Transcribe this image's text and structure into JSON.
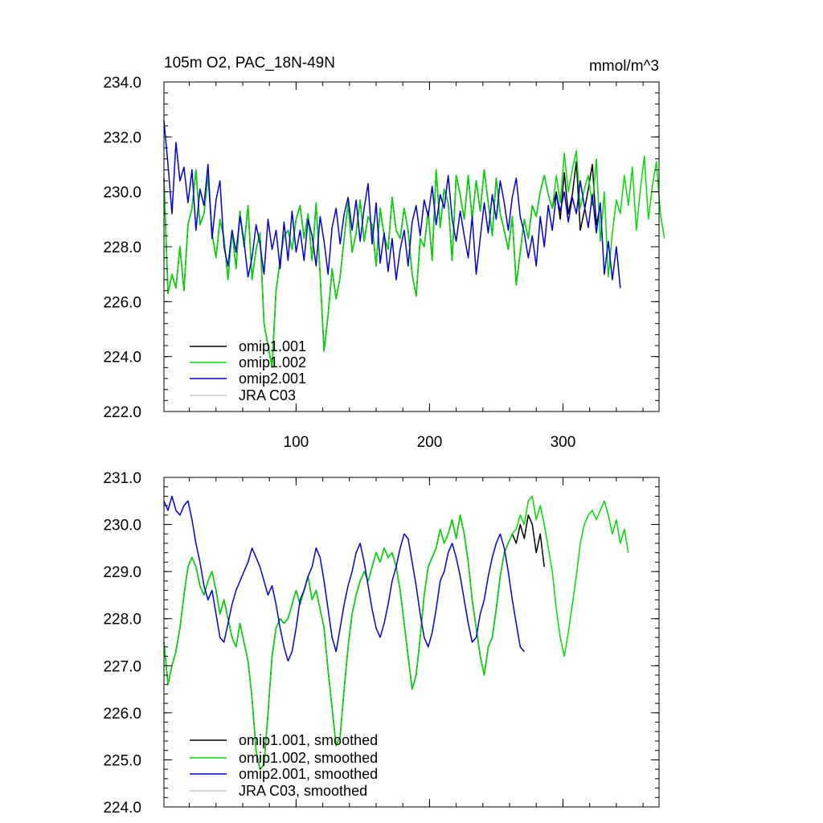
{
  "chart_data": [
    {
      "type": "line",
      "title_left": "105m O2, PAC_18N-49N",
      "title_right": "mmol/m^3",
      "xlim": [
        1,
        372
      ],
      "ylim": [
        222.0,
        234.0
      ],
      "y_ticks": [
        222.0,
        224.0,
        226.0,
        228.0,
        230.0,
        232.0,
        234.0
      ],
      "y_tick_labels": [
        "222.0",
        "224.0",
        "226.0",
        "228.0",
        "230.0",
        "232.0",
        "234.0"
      ],
      "x_ticks": [
        100,
        200,
        300
      ],
      "x_tick_labels": [
        "100",
        "200",
        "300"
      ],
      "legend_position": "bottom-left",
      "grid": false,
      "series": [
        {
          "name": "omip1.001",
          "color": "#000000",
          "x_start": 1,
          "x_step": 3,
          "values": [
            230.5,
            226.3,
            227.0,
            226.5,
            228.0,
            226.4,
            228.8,
            229.4,
            230.8,
            228.8,
            229.2,
            230.6,
            228.5,
            227.6,
            229.0,
            228.3,
            226.8,
            228.6,
            227.2,
            229.3,
            228.0,
            229.5,
            226.8,
            227.9,
            228.5,
            225.2,
            224.4,
            223.6,
            226.4,
            227.5,
            228.4,
            228.6,
            227.9,
            229.0,
            229.5,
            228.3,
            229.2,
            227.5,
            229.6,
            227.0,
            224.2,
            225.5,
            227.2,
            226.1,
            226.9,
            228.3,
            229.6,
            227.8,
            228.5,
            229.7,
            228.2,
            229.1,
            228.8,
            227.3,
            229.4,
            228.4,
            227.9,
            229.8,
            228.6,
            228.3,
            229.4,
            228.6,
            227.0,
            226.2,
            228.3,
            228.0,
            229.3,
            227.5,
            230.8,
            228.7,
            230.1,
            229.6,
            227.5,
            230.6,
            229.9,
            229.0,
            230.6,
            229.0,
            230.4,
            229.3,
            230.8,
            229.6,
            228.4,
            230.5,
            229.2,
            228.6,
            227.9,
            229.1,
            226.6,
            227.8,
            229.0,
            228.3,
            229.5,
            229.1,
            230.0,
            230.6,
            229.9,
            229.4,
            230.0,
            229.0,
            230.7,
            229.2,
            229.9,
            231.1,
            228.6,
            229.3,
            230.1,
            231.0,
            228.8,
            229.5
          ]
        },
        {
          "name": "omip1.002",
          "color": "#00dd00",
          "x_start": 1,
          "x_step": 3,
          "values": [
            230.5,
            226.3,
            227.0,
            226.5,
            228.0,
            226.4,
            228.8,
            229.4,
            230.8,
            228.8,
            229.2,
            230.6,
            228.5,
            227.6,
            229.0,
            228.3,
            226.8,
            228.6,
            227.2,
            229.3,
            228.0,
            229.5,
            226.8,
            227.9,
            228.5,
            225.2,
            224.4,
            223.6,
            226.4,
            227.5,
            228.4,
            228.6,
            227.9,
            229.0,
            229.5,
            228.3,
            229.2,
            227.5,
            229.6,
            227.0,
            224.2,
            225.5,
            227.2,
            226.1,
            226.9,
            228.3,
            229.6,
            227.8,
            228.5,
            229.7,
            228.2,
            229.1,
            228.8,
            227.3,
            229.4,
            228.4,
            227.9,
            229.8,
            228.6,
            228.3,
            229.4,
            228.6,
            227.0,
            226.2,
            228.3,
            228.0,
            229.3,
            227.5,
            230.8,
            228.7,
            230.1,
            229.6,
            227.5,
            230.6,
            229.9,
            229.0,
            230.6,
            229.0,
            230.4,
            229.3,
            230.8,
            229.6,
            228.4,
            230.5,
            229.2,
            228.6,
            227.9,
            229.1,
            226.6,
            227.8,
            229.0,
            228.3,
            229.5,
            229.1,
            230.0,
            230.6,
            229.9,
            229.4,
            230.6,
            229.6,
            231.4,
            230.0,
            230.8,
            231.5,
            229.4,
            230.1,
            230.6,
            229.5,
            231.2,
            228.2,
            230.0,
            226.9,
            228.5,
            229.7,
            229.2,
            230.6,
            229.5,
            230.9,
            228.6,
            230.1,
            231.3,
            229.0,
            230.2,
            231.1,
            229.2,
            228.3
          ]
        },
        {
          "name": "omip2.001",
          "color": "#0000dd",
          "x_start": 1,
          "x_step": 3,
          "values": [
            232.6,
            231.0,
            229.2,
            231.8,
            230.4,
            230.9,
            229.6,
            230.8,
            228.6,
            230.1,
            229.5,
            231.0,
            228.3,
            229.7,
            230.4,
            228.0,
            227.3,
            228.6,
            227.8,
            229.1,
            228.2,
            226.9,
            227.6,
            228.8,
            228.1,
            227.0,
            229.0,
            227.9,
            228.6,
            227.2,
            228.9,
            227.5,
            229.3,
            227.8,
            228.6,
            227.5,
            229.0,
            228.4,
            227.3,
            229.1,
            228.2,
            227.0,
            228.7,
            229.4,
            228.1,
            229.2,
            229.8,
            228.6,
            229.7,
            228.2,
            229.4,
            230.3,
            228.1,
            229.6,
            227.4,
            228.5,
            227.1,
            228.3,
            226.8,
            227.9,
            228.6,
            227.3,
            228.9,
            229.5,
            228.4,
            229.7,
            229.1,
            230.2,
            228.8,
            229.9,
            229.4,
            230.6,
            229.0,
            228.2,
            229.3,
            228.4,
            227.6,
            229.1,
            227.0,
            228.3,
            229.6,
            228.5,
            229.9,
            229.0,
            230.4,
            229.6,
            228.6,
            229.8,
            230.5,
            229.1,
            228.5,
            227.6,
            228.4,
            227.3,
            229.1,
            228.0,
            229.5,
            228.6,
            229.9,
            229.3,
            230.0,
            228.9,
            229.8,
            229.2,
            230.4,
            229.5,
            228.7,
            229.9,
            228.5,
            229.6,
            227.0,
            228.2,
            226.8,
            228.0,
            226.5
          ]
        },
        {
          "name": "JRA C03",
          "color": "#c8c8c8",
          "x_start": 1,
          "x_step": 3,
          "values": []
        }
      ]
    },
    {
      "type": "line",
      "xlim": [
        1,
        372
      ],
      "ylim": [
        224.0,
        231.0
      ],
      "y_ticks": [
        224.0,
        225.0,
        226.0,
        227.0,
        228.0,
        229.0,
        230.0,
        231.0
      ],
      "y_tick_labels": [
        "224.0",
        "225.0",
        "226.0",
        "227.0",
        "228.0",
        "229.0",
        "230.0",
        "231.0"
      ],
      "x_ticks": [
        100,
        200,
        300
      ],
      "legend_position": "bottom-left",
      "grid": false,
      "series": [
        {
          "name": "omip1.001, smoothed",
          "color": "#000000",
          "x_start": 1,
          "x_step": 3,
          "values": [
            227.5,
            226.6,
            227.0,
            227.3,
            227.8,
            228.5,
            229.1,
            229.3,
            229.1,
            228.7,
            228.5,
            228.8,
            229.0,
            228.6,
            228.1,
            228.4,
            228.0,
            227.6,
            227.4,
            227.9,
            227.5,
            227.1,
            226.3,
            225.2,
            224.8,
            224.9,
            226.0,
            227.2,
            227.8,
            228.0,
            227.9,
            228.0,
            228.3,
            228.6,
            228.3,
            228.6,
            228.9,
            228.4,
            228.6,
            228.2,
            227.8,
            226.9,
            226.1,
            225.3,
            225.5,
            226.5,
            227.4,
            228.1,
            228.5,
            228.8,
            229.0,
            228.8,
            229.1,
            229.4,
            229.2,
            229.5,
            229.3,
            229.4,
            229.1,
            228.6,
            227.9,
            227.2,
            226.5,
            226.8,
            227.6,
            228.5,
            229.1,
            229.3,
            229.5,
            229.9,
            229.6,
            229.8,
            230.1,
            229.7,
            230.2,
            229.8,
            229.2,
            228.4,
            227.8,
            227.2,
            226.8,
            227.4,
            227.6,
            228.2,
            228.9,
            229.4,
            229.6,
            229.8,
            229.6,
            230.0,
            229.7,
            230.2,
            230.0,
            229.4,
            229.8,
            229.1
          ]
        },
        {
          "name": "omip1.002, smoothed",
          "color": "#00dd00",
          "x_start": 1,
          "x_step": 3,
          "values": [
            227.5,
            226.6,
            227.0,
            227.3,
            227.8,
            228.5,
            229.1,
            229.3,
            229.1,
            228.7,
            228.5,
            228.8,
            229.0,
            228.6,
            228.1,
            228.4,
            228.0,
            227.6,
            227.4,
            227.9,
            227.5,
            227.1,
            226.3,
            225.2,
            224.8,
            224.9,
            226.0,
            227.2,
            227.8,
            228.0,
            227.9,
            228.0,
            228.3,
            228.6,
            228.3,
            228.6,
            228.9,
            228.4,
            228.6,
            228.2,
            227.8,
            226.9,
            226.1,
            225.3,
            225.5,
            226.5,
            227.4,
            228.1,
            228.5,
            228.8,
            229.0,
            228.8,
            229.1,
            229.4,
            229.2,
            229.5,
            229.3,
            229.4,
            229.1,
            228.6,
            227.9,
            227.2,
            226.5,
            226.8,
            227.6,
            228.5,
            229.1,
            229.3,
            229.5,
            229.9,
            229.6,
            229.8,
            230.1,
            229.7,
            230.2,
            229.8,
            229.2,
            228.4,
            227.8,
            227.2,
            226.8,
            227.4,
            227.6,
            228.2,
            228.9,
            229.4,
            229.6,
            229.8,
            229.9,
            230.2,
            230.0,
            230.5,
            230.6,
            230.1,
            230.4,
            230.0,
            229.5,
            229.0,
            228.2,
            227.6,
            227.2,
            227.7,
            228.3,
            228.9,
            229.6,
            230.0,
            230.2,
            230.3,
            230.1,
            230.3,
            230.5,
            230.2,
            229.8,
            230.1,
            229.6,
            229.9,
            229.4
          ]
        },
        {
          "name": "omip2.001, smoothed",
          "color": "#0000dd",
          "x_start": 1,
          "x_step": 3,
          "values": [
            230.5,
            230.3,
            230.6,
            230.3,
            230.2,
            230.4,
            230.5,
            230.1,
            229.6,
            229.2,
            228.7,
            228.4,
            228.6,
            228.1,
            227.6,
            227.5,
            227.9,
            228.3,
            228.6,
            228.8,
            229.0,
            229.2,
            229.5,
            229.3,
            229.1,
            228.8,
            228.5,
            228.7,
            228.3,
            227.8,
            227.4,
            227.1,
            227.3,
            227.8,
            228.4,
            228.6,
            228.9,
            229.1,
            229.5,
            229.3,
            228.8,
            228.2,
            227.6,
            227.3,
            227.8,
            228.3,
            228.7,
            229.0,
            229.4,
            229.6,
            229.2,
            228.7,
            228.2,
            227.8,
            227.6,
            227.9,
            228.3,
            228.8,
            229.1,
            229.5,
            229.8,
            229.7,
            229.2,
            228.7,
            228.1,
            227.6,
            227.4,
            227.7,
            228.2,
            228.8,
            229.0,
            229.4,
            229.6,
            229.3,
            228.9,
            228.4,
            227.9,
            227.5,
            227.6,
            228.1,
            228.4,
            228.9,
            229.3,
            229.6,
            229.8,
            229.5,
            229.0,
            228.4,
            227.9,
            227.4,
            227.3
          ]
        },
        {
          "name": "JRA C03, smoothed",
          "color": "#c8c8c8",
          "x_start": 1,
          "x_step": 3,
          "values": []
        }
      ]
    }
  ]
}
